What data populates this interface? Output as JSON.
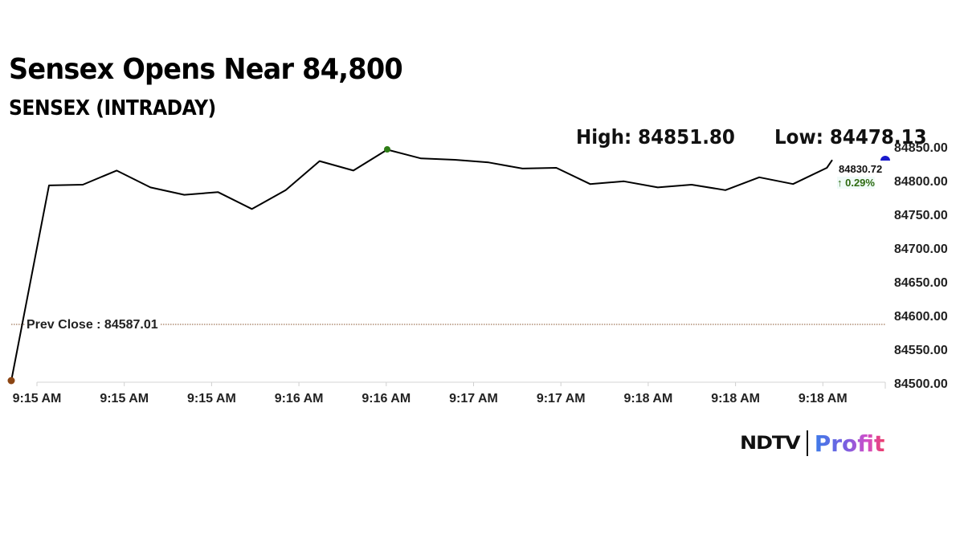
{
  "header": {
    "title": "Sensex Opens Near 84,800",
    "subtitle": "SENSEX (INTRADAY)"
  },
  "stats": {
    "high_label": "High: 84851.80",
    "low_label": "Low: 84478.13"
  },
  "annotations": {
    "prev_close_label": "Prev Close : 84587.01",
    "last_value": "84830.72",
    "last_change": "↑ 0.29%"
  },
  "colors": {
    "line": "#000000",
    "open_marker": "#8b4513",
    "high_marker": "#2e7d16",
    "last_marker": "#1a1acc",
    "prev_close_line": "#a0785a",
    "change_up": "#2e6b12"
  },
  "brand": {
    "ndtv": "NDTV",
    "profit": "Profit"
  },
  "chart_data": {
    "type": "line",
    "title": "Sensex Opens Near 84,800",
    "subtitle": "SENSEX (INTRADAY)",
    "xlabel": "",
    "ylabel": "",
    "ylim": [
      84500,
      84850
    ],
    "grid": false,
    "y_ticks": [
      "84850.00",
      "84800.00",
      "84750.00",
      "84700.00",
      "84650.00",
      "84600.00",
      "84550.00",
      "84500.00"
    ],
    "x_ticks": [
      "9:15 AM",
      "9:15 AM",
      "9:15 AM",
      "9:16 AM",
      "9:16 AM",
      "9:17 AM",
      "9:17 AM",
      "9:18 AM",
      "9:18 AM",
      "9:18 AM"
    ],
    "series": [
      {
        "name": "SENSEX",
        "values": [
          84503,
          84793,
          84794,
          84815,
          84790,
          84779,
          84783,
          84758,
          84786,
          84829,
          84815,
          84846,
          84833,
          84831,
          84827,
          84818,
          84819,
          84795,
          84799,
          84790,
          84794,
          84786,
          84805,
          84795,
          84819,
          84830.72
        ]
      }
    ],
    "reference_lines": [
      {
        "name": "Prev Close",
        "value": 84587.01
      }
    ],
    "high": 84851.8,
    "low": 84478.13,
    "last": 84830.72,
    "change_pct": 0.29
  }
}
